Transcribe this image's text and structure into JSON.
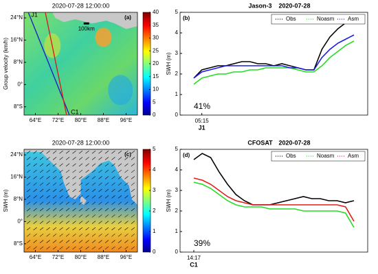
{
  "chart_data": [
    {
      "type": "map",
      "title": "2020-07-28 12:00:00",
      "panel": "(a)",
      "xticks": [
        {
          "value": 64,
          "label": "64°E"
        },
        {
          "value": 72,
          "label": "72°E"
        },
        {
          "value": 80,
          "label": "80°E"
        },
        {
          "value": 88,
          "label": "88°E"
        },
        {
          "value": 96,
          "label": "96°E"
        }
      ],
      "yticks": [
        {
          "value": 24,
          "label": "24°N"
        },
        {
          "value": 16,
          "label": "16°N"
        },
        {
          "value": 8,
          "label": "8°N"
        },
        {
          "value": 0,
          "label": "0°"
        },
        {
          "value": -8,
          "label": "8°S"
        }
      ],
      "xlim": [
        60,
        100
      ],
      "ylim": [
        -11,
        26
      ],
      "colorbar": {
        "label": "Group velocity (km/h)",
        "lim": [
          0,
          40
        ],
        "ticks": [
          0,
          5,
          10,
          15,
          20,
          25,
          30,
          35,
          40
        ]
      },
      "scale_label": "100km",
      "track_labels": [
        "J1",
        "C1"
      ]
    },
    {
      "type": "line",
      "title": "Jason-3",
      "date": "2020-07-28",
      "panel": "(b)",
      "ylabel": "SWH (m)",
      "ylim": [
        0,
        5
      ],
      "yticks": [
        0,
        1,
        2,
        3,
        4,
        5
      ],
      "categories": [
        null,
        "05:15",
        null,
        null,
        null,
        null,
        null,
        null,
        null,
        null,
        null,
        null,
        null,
        null,
        null,
        null,
        null,
        null,
        null,
        null,
        null
      ],
      "series": [
        {
          "name": "Obs",
          "color": "#000000",
          "values": [
            1.8,
            2.2,
            2.3,
            2.4,
            2.4,
            2.5,
            2.6,
            2.6,
            2.5,
            2.5,
            2.4,
            2.5,
            2.4,
            2.3,
            2.2,
            2.2,
            3.2,
            3.8,
            4.2,
            4.5,
            4.8
          ]
        },
        {
          "name": "Noasm",
          "color": "#22dd22",
          "values": [
            1.5,
            1.8,
            1.9,
            2.0,
            2.0,
            2.1,
            2.1,
            2.2,
            2.2,
            2.3,
            2.3,
            2.3,
            2.3,
            2.2,
            2.1,
            2.1,
            2.4,
            2.8,
            3.1,
            3.4,
            3.6
          ]
        },
        {
          "name": "Asm",
          "color": "#1a1ae6",
          "values": [
            1.8,
            2.1,
            2.2,
            2.3,
            2.4,
            2.4,
            2.4,
            2.4,
            2.4,
            2.4,
            2.4,
            2.4,
            2.3,
            2.3,
            2.2,
            2.2,
            2.8,
            3.2,
            3.5,
            3.7,
            3.9
          ]
        }
      ],
      "score": "41%",
      "score_color": "#1a1ae6",
      "track": "J1"
    },
    {
      "type": "map",
      "title": "2020-07-28 12:00:00",
      "panel": "(c)",
      "xticks": [
        {
          "value": 64,
          "label": "64°E"
        },
        {
          "value": 72,
          "label": "72°E"
        },
        {
          "value": 80,
          "label": "80°E"
        },
        {
          "value": 88,
          "label": "88°E"
        },
        {
          "value": 96,
          "label": "96°E"
        }
      ],
      "yticks": [
        {
          "value": 24,
          "label": "24°N"
        },
        {
          "value": 16,
          "label": "16°N"
        },
        {
          "value": 8,
          "label": "8°N"
        },
        {
          "value": 0,
          "label": "0°"
        },
        {
          "value": -8,
          "label": "8°S"
        }
      ],
      "xlim": [
        60,
        100
      ],
      "ylim": [
        -11,
        26
      ],
      "ylabel": "SWH (m)",
      "colorbar": {
        "lim": [
          0,
          5
        ],
        "ticks": [
          0,
          1,
          2,
          3,
          4,
          5
        ]
      }
    },
    {
      "type": "line",
      "title": "CFOSAT",
      "date": "2020-07-28",
      "panel": "(d)",
      "ylabel": "SWH (m)",
      "ylim": [
        0,
        5
      ],
      "yticks": [
        0,
        1,
        2,
        3,
        4,
        5
      ],
      "categories": [
        "14:17",
        null,
        null,
        null,
        null,
        null,
        null,
        null,
        null,
        null,
        null,
        null,
        null,
        null,
        null,
        null,
        null,
        null,
        null,
        null
      ],
      "series": [
        {
          "name": "Obs",
          "color": "#000000",
          "values": [
            4.5,
            4.8,
            4.6,
            3.9,
            3.3,
            2.8,
            2.5,
            2.3,
            2.3,
            2.3,
            2.4,
            2.5,
            2.6,
            2.7,
            2.6,
            2.6,
            2.5,
            2.5,
            2.4,
            2.5
          ]
        },
        {
          "name": "Noasm",
          "color": "#22dd22",
          "values": [
            3.4,
            3.3,
            3.1,
            2.8,
            2.5,
            2.3,
            2.2,
            2.2,
            2.2,
            2.1,
            2.1,
            2.1,
            2.1,
            2.0,
            2.0,
            2.0,
            2.0,
            2.0,
            1.9,
            1.2
          ]
        },
        {
          "name": "Asm",
          "color": "#e61a1a",
          "values": [
            3.6,
            3.5,
            3.3,
            3.0,
            2.7,
            2.5,
            2.4,
            2.3,
            2.3,
            2.3,
            2.3,
            2.3,
            2.3,
            2.3,
            2.3,
            2.3,
            2.3,
            2.3,
            2.2,
            1.5
          ]
        }
      ],
      "score": "39%",
      "score_color": "#e61a1a",
      "track": "C1"
    }
  ]
}
